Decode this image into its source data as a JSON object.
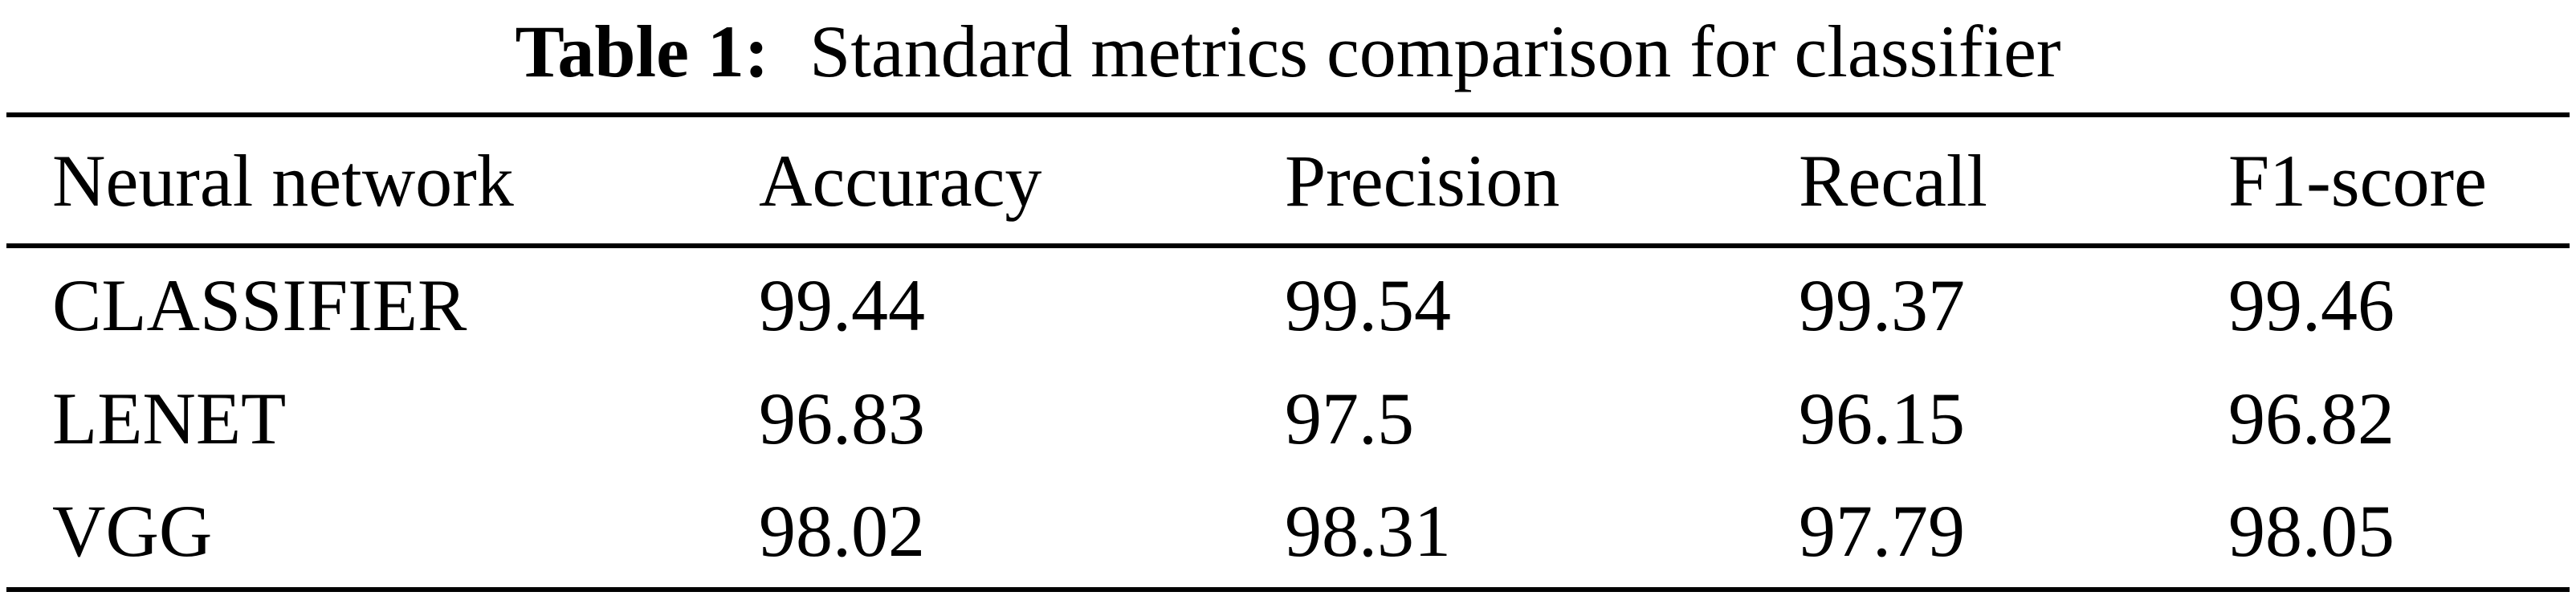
{
  "title": {
    "prefix": "Table 1:",
    "text": "Standard metrics comparison for classifier"
  },
  "table": {
    "headers": [
      "Neural network",
      "Accuracy",
      "Precision",
      "Recall",
      "F1-score"
    ],
    "rows": [
      {
        "network": "CLASSIFIER",
        "accuracy": "99.44",
        "precision": "99.54",
        "recall": "99.37",
        "f1": "99.46"
      },
      {
        "network": "LENET",
        "accuracy": "96.83",
        "precision": "97.5",
        "recall": "96.15",
        "f1": "96.82"
      },
      {
        "network": "VGG",
        "accuracy": "98.02",
        "precision": "98.31",
        "recall": "97.79",
        "f1": "98.05"
      }
    ]
  },
  "chart_data": {
    "type": "table",
    "title": "Table 1: Standard metrics comparison for classifier",
    "columns": [
      "Neural network",
      "Accuracy",
      "Precision",
      "Recall",
      "F1-score"
    ],
    "rows": [
      [
        "CLASSIFIER",
        99.44,
        99.54,
        99.37,
        99.46
      ],
      [
        "LENET",
        96.83,
        97.5,
        96.15,
        96.82
      ],
      [
        "VGG",
        98.02,
        98.31,
        97.79,
        98.05
      ]
    ]
  },
  "colors": {
    "text": "#000000",
    "background": "#ffffff",
    "rule": "#000000"
  }
}
